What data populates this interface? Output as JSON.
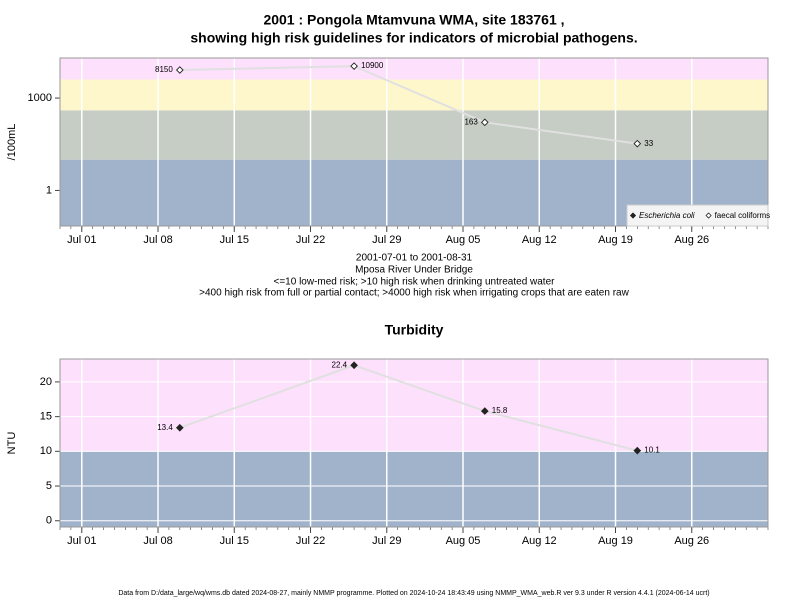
{
  "footer": "Data from D:/data_large/wq/wms.db dated 2024-08-27, mainly NMMP programme. Plotted on 2024-10-24 18:43:49 using NMMP_WMA_web.R ver 9.3 under R version 4.4.1 (2024-06-14 ucrt)",
  "chart_data": [
    {
      "type": "scatter",
      "title": "2001 : Pongola Mtamvuna WMA, site 183761 ,",
      "subtitle": "showing high risk guidelines for indicators of microbial pathogens.",
      "notes": [
        "2001-07-01 to 2001-08-31",
        "Mposa River Under Bridge",
        "<=10 low-med risk; >10 high risk when drinking untreated water",
        ">400 high risk from full or partial contact; >4000 high risk when irrigating crops that are eaten raw"
      ],
      "y_label": "/100mL",
      "yscale": "log",
      "ylim": [
        0.07,
        20000
      ],
      "yticks": [
        1,
        1000
      ],
      "xlim": [
        "2001-06-29",
        "2001-09-02"
      ],
      "xticks": [
        {
          "value": "2001-07-01",
          "label": "Jul 01"
        },
        {
          "value": "2001-07-08",
          "label": "Jul 08"
        },
        {
          "value": "2001-07-15",
          "label": "Jul 15"
        },
        {
          "value": "2001-07-22",
          "label": "Jul 22"
        },
        {
          "value": "2001-07-29",
          "label": "Jul 29"
        },
        {
          "value": "2001-08-05",
          "label": "Aug 05"
        },
        {
          "value": "2001-08-12",
          "label": "Aug 12"
        },
        {
          "value": "2001-08-19",
          "label": "Aug 19"
        },
        {
          "value": "2001-08-26",
          "label": "Aug 26"
        }
      ],
      "grid": true,
      "bands": [
        {
          "from": 0.07,
          "to": 10,
          "color": "#a0b3cb"
        },
        {
          "from": 10,
          "to": 400,
          "color": "#c5cdc4"
        },
        {
          "from": 400,
          "to": 4000,
          "color": "#fdf7cb"
        },
        {
          "from": 4000,
          "to": 20000,
          "color": "#fde0fc"
        }
      ],
      "x": [
        "2001-07-10",
        "2001-07-26",
        "2001-08-07",
        "2001-08-21"
      ],
      "series": [
        {
          "name": "Escherichia coli",
          "marker": "filled",
          "color": "#222222",
          "values": [
            null,
            null,
            null,
            null
          ]
        },
        {
          "name": "faecal coliforms",
          "marker": "open",
          "color": "#222222",
          "values": [
            8150,
            10900,
            163,
            33
          ]
        }
      ],
      "legend": "bottom-right"
    },
    {
      "type": "scatter",
      "title": "Turbidity",
      "y_label": "NTU",
      "ylim": [
        -0.9,
        23.3
      ],
      "yticks": [
        0,
        5,
        10,
        15,
        20
      ],
      "xlim": [
        "2001-06-29",
        "2001-09-02"
      ],
      "xticks": [
        {
          "value": "2001-07-01",
          "label": "Jul 01"
        },
        {
          "value": "2001-07-08",
          "label": "Jul 08"
        },
        {
          "value": "2001-07-15",
          "label": "Jul 15"
        },
        {
          "value": "2001-07-22",
          "label": "Jul 22"
        },
        {
          "value": "2001-07-29",
          "label": "Jul 29"
        },
        {
          "value": "2001-08-05",
          "label": "Aug 05"
        },
        {
          "value": "2001-08-12",
          "label": "Aug 12"
        },
        {
          "value": "2001-08-19",
          "label": "Aug 19"
        },
        {
          "value": "2001-08-26",
          "label": "Aug 26"
        }
      ],
      "grid": true,
      "bands": [
        {
          "from": -0.9,
          "to": 10,
          "color": "#a0b3cb"
        },
        {
          "from": 10,
          "to": 23.3,
          "color": "#fde0fc"
        }
      ],
      "x": [
        "2001-07-10",
        "2001-07-26",
        "2001-08-07",
        "2001-08-21"
      ],
      "series": [
        {
          "name": "Turbidity",
          "marker": "filled",
          "color": "#222222",
          "values": [
            13.4,
            22.4,
            15.8,
            10.1
          ]
        }
      ]
    }
  ]
}
